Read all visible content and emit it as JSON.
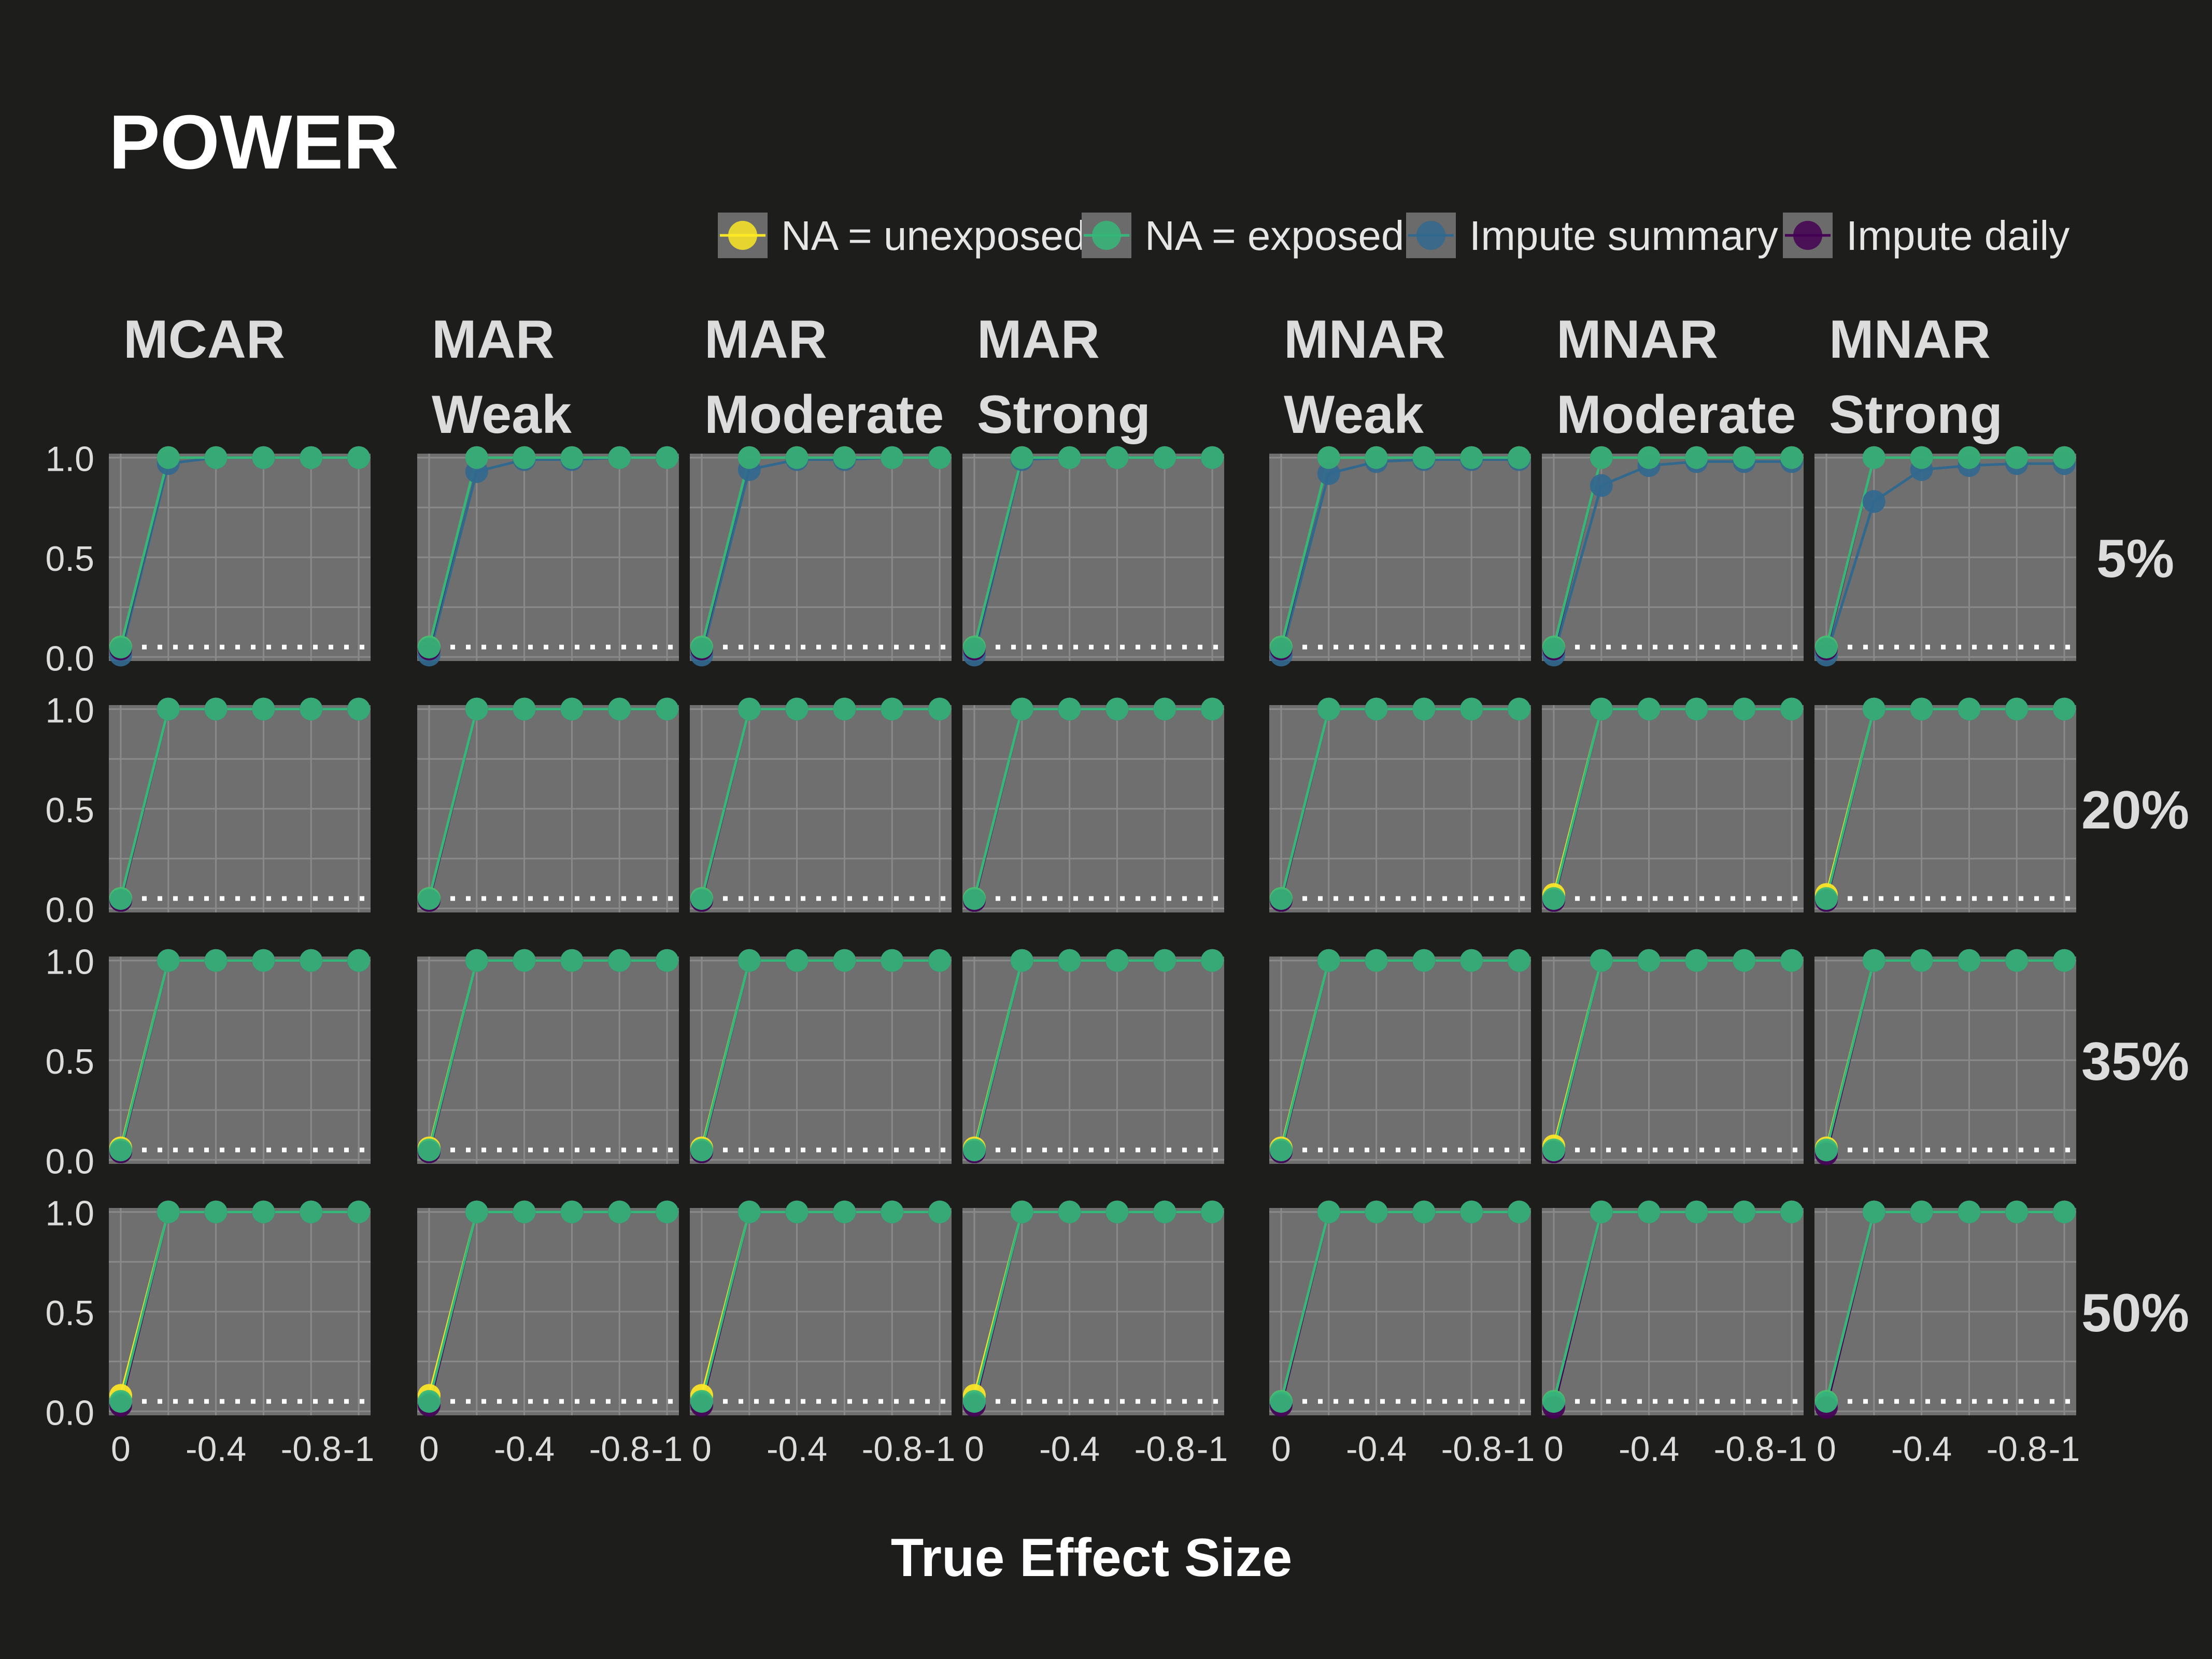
{
  "chart_data": {
    "type": "line",
    "title": "POWER",
    "xlabel": "True Effect Size",
    "ylabel": "",
    "x": [
      0,
      -0.2,
      -0.4,
      -0.6,
      -0.8,
      -1
    ],
    "x_tick_labels": [
      "0",
      "-0.4",
      "-0.8",
      "-1"
    ],
    "x_tick_values": [
      0,
      -0.4,
      -0.8,
      -1
    ],
    "xlim": [
      0.05,
      -1.05
    ],
    "y_tick_labels": [
      "0.0",
      "0.5",
      "1.0"
    ],
    "y_tick_values": [
      0,
      0.5,
      1
    ],
    "ylim": [
      -0.02,
      1.02
    ],
    "reference_line": {
      "y": 0.05,
      "style": "dotted",
      "color": "#ffffff"
    },
    "legend_position": "top-right",
    "legend": [
      "NA = unexposed",
      "NA = exposed",
      "Impute summary",
      "Impute daily"
    ],
    "series_colors": {
      "NA = unexposed": "#fde725",
      "NA = exposed": "#35b779",
      "Impute summary": "#31688e",
      "Impute daily": "#440154"
    },
    "columns": [
      {
        "line1": "MCAR",
        "line2": ""
      },
      {
        "line1": "MAR",
        "line2": "Weak"
      },
      {
        "line1": "MAR",
        "line2": "Moderate"
      },
      {
        "line1": "MAR",
        "line2": "Strong"
      },
      {
        "line1": "MNAR",
        "line2": "Weak"
      },
      {
        "line1": "MNAR",
        "line2": "Moderate"
      },
      {
        "line1": "MNAR",
        "line2": "Strong"
      }
    ],
    "rows": [
      "5%",
      "20%",
      "35%",
      "50%"
    ],
    "panels": [
      [
        {
          "NA = unexposed": [
            0.05,
            1,
            1,
            1,
            1,
            1
          ],
          "NA = exposed": [
            0.05,
            1,
            1,
            1,
            1,
            1
          ],
          "Impute summary": [
            0.01,
            0.97,
            1,
            1,
            1,
            1
          ],
          "Impute daily": [
            0.04,
            1,
            1,
            1,
            1,
            1
          ]
        },
        {
          "NA = unexposed": [
            0.05,
            1,
            1,
            1,
            1,
            1
          ],
          "NA = exposed": [
            0.05,
            1,
            1,
            1,
            1,
            1
          ],
          "Impute summary": [
            0.01,
            0.93,
            0.99,
            0.99,
            1,
            1
          ],
          "Impute daily": [
            0.04,
            1,
            1,
            1,
            1,
            1
          ]
        },
        {
          "NA = unexposed": [
            0.05,
            1,
            1,
            1,
            1,
            1
          ],
          "NA = exposed": [
            0.05,
            1,
            1,
            1,
            1,
            1
          ],
          "Impute summary": [
            0.01,
            0.94,
            0.99,
            0.99,
            1,
            1
          ],
          "Impute daily": [
            0.04,
            1,
            1,
            1,
            1,
            1
          ]
        },
        {
          "NA = unexposed": [
            0.05,
            1,
            1,
            1,
            1,
            1
          ],
          "NA = exposed": [
            0.05,
            1,
            1,
            1,
            1,
            1
          ],
          "Impute summary": [
            0.01,
            0.99,
            1,
            1,
            1,
            1
          ],
          "Impute daily": [
            0.04,
            1,
            1,
            1,
            1,
            1
          ]
        },
        {
          "NA = unexposed": [
            0.05,
            1,
            1,
            1,
            1,
            1
          ],
          "NA = exposed": [
            0.05,
            1,
            1,
            1,
            1,
            1
          ],
          "Impute summary": [
            0.01,
            0.92,
            0.98,
            0.99,
            0.99,
            0.99
          ],
          "Impute daily": [
            0.04,
            1,
            1,
            1,
            1,
            1
          ]
        },
        {
          "NA = unexposed": [
            0.05,
            1,
            1,
            1,
            1,
            1
          ],
          "NA = exposed": [
            0.05,
            1,
            1,
            1,
            1,
            1
          ],
          "Impute summary": [
            0.01,
            0.86,
            0.96,
            0.98,
            0.98,
            0.98
          ],
          "Impute daily": [
            0.04,
            1,
            1,
            1,
            1,
            1
          ]
        },
        {
          "NA = unexposed": [
            0.05,
            1,
            1,
            1,
            1,
            1
          ],
          "NA = exposed": [
            0.05,
            1,
            1,
            1,
            1,
            1
          ],
          "Impute summary": [
            0.01,
            0.78,
            0.94,
            0.96,
            0.97,
            0.97
          ],
          "Impute daily": [
            0.04,
            1,
            1,
            1,
            1,
            1
          ]
        }
      ],
      [
        {
          "NA = unexposed": [
            0.05,
            1,
            1,
            1,
            1,
            1
          ],
          "NA = exposed": [
            0.05,
            1,
            1,
            1,
            1,
            1
          ],
          "Impute summary": [
            0.04,
            1,
            1,
            1,
            1,
            1
          ],
          "Impute daily": [
            0.04,
            1,
            1,
            1,
            1,
            1
          ]
        },
        {
          "NA = unexposed": [
            0.05,
            1,
            1,
            1,
            1,
            1
          ],
          "NA = exposed": [
            0.05,
            1,
            1,
            1,
            1,
            1
          ],
          "Impute summary": [
            0.04,
            1,
            1,
            1,
            1,
            1
          ],
          "Impute daily": [
            0.04,
            1,
            1,
            1,
            1,
            1
          ]
        },
        {
          "NA = unexposed": [
            0.05,
            1,
            1,
            1,
            1,
            1
          ],
          "NA = exposed": [
            0.05,
            1,
            1,
            1,
            1,
            1
          ],
          "Impute summary": [
            0.04,
            1,
            1,
            1,
            1,
            1
          ],
          "Impute daily": [
            0.04,
            1,
            1,
            1,
            1,
            1
          ]
        },
        {
          "NA = unexposed": [
            0.05,
            1,
            1,
            1,
            1,
            1
          ],
          "NA = exposed": [
            0.05,
            1,
            1,
            1,
            1,
            1
          ],
          "Impute summary": [
            0.04,
            1,
            1,
            1,
            1,
            1
          ],
          "Impute daily": [
            0.04,
            1,
            1,
            1,
            1,
            1
          ]
        },
        {
          "NA = unexposed": [
            0.05,
            1,
            1,
            1,
            1,
            1
          ],
          "NA = exposed": [
            0.05,
            1,
            1,
            1,
            1,
            1
          ],
          "Impute summary": [
            0.04,
            1,
            1,
            1,
            1,
            1
          ],
          "Impute daily": [
            0.04,
            1,
            1,
            1,
            1,
            1
          ]
        },
        {
          "NA = unexposed": [
            0.07,
            1,
            1,
            1,
            1,
            1
          ],
          "NA = exposed": [
            0.05,
            1,
            1,
            1,
            1,
            1
          ],
          "Impute summary": [
            0.04,
            1,
            1,
            1,
            1,
            1
          ],
          "Impute daily": [
            0.04,
            1,
            1,
            1,
            1,
            1
          ]
        },
        {
          "NA = unexposed": [
            0.07,
            1,
            1,
            1,
            1,
            1
          ],
          "NA = exposed": [
            0.05,
            1,
            1,
            1,
            1,
            1
          ],
          "Impute summary": [
            0.04,
            1,
            1,
            1,
            1,
            1
          ],
          "Impute daily": [
            0.04,
            1,
            1,
            1,
            1,
            1
          ]
        }
      ],
      [
        {
          "NA = unexposed": [
            0.06,
            1,
            1,
            1,
            1,
            1
          ],
          "NA = exposed": [
            0.05,
            1,
            1,
            1,
            1,
            1
          ],
          "Impute summary": [
            0.04,
            1,
            1,
            1,
            1,
            1
          ],
          "Impute daily": [
            0.04,
            1,
            1,
            1,
            1,
            1
          ]
        },
        {
          "NA = unexposed": [
            0.06,
            1,
            1,
            1,
            1,
            1
          ],
          "NA = exposed": [
            0.05,
            1,
            1,
            1,
            1,
            1
          ],
          "Impute summary": [
            0.04,
            1,
            1,
            1,
            1,
            1
          ],
          "Impute daily": [
            0.04,
            1,
            1,
            1,
            1,
            1
          ]
        },
        {
          "NA = unexposed": [
            0.06,
            1,
            1,
            1,
            1,
            1
          ],
          "NA = exposed": [
            0.05,
            1,
            1,
            1,
            1,
            1
          ],
          "Impute summary": [
            0.04,
            1,
            1,
            1,
            1,
            1
          ],
          "Impute daily": [
            0.04,
            1,
            1,
            1,
            1,
            1
          ]
        },
        {
          "NA = unexposed": [
            0.06,
            1,
            1,
            1,
            1,
            1
          ],
          "NA = exposed": [
            0.05,
            1,
            1,
            1,
            1,
            1
          ],
          "Impute summary": [
            0.04,
            1,
            1,
            1,
            1,
            1
          ],
          "Impute daily": [
            0.04,
            1,
            1,
            1,
            1,
            1
          ]
        },
        {
          "NA = unexposed": [
            0.06,
            1,
            1,
            1,
            1,
            1
          ],
          "NA = exposed": [
            0.05,
            1,
            1,
            1,
            1,
            1
          ],
          "Impute summary": [
            0.04,
            1,
            1,
            1,
            1,
            1
          ],
          "Impute daily": [
            0.04,
            1,
            1,
            1,
            1,
            1
          ]
        },
        {
          "NA = unexposed": [
            0.07,
            1,
            1,
            1,
            1,
            1
          ],
          "NA = exposed": [
            0.05,
            1,
            1,
            1,
            1,
            1
          ],
          "Impute summary": [
            0.04,
            1,
            1,
            1,
            1,
            1
          ],
          "Impute daily": [
            0.04,
            1,
            1,
            1,
            1,
            1
          ]
        },
        {
          "NA = unexposed": [
            0.06,
            1,
            1,
            1,
            1,
            1
          ],
          "NA = exposed": [
            0.05,
            1,
            1,
            1,
            1,
            1
          ],
          "Impute summary": [
            0.04,
            1,
            1,
            1,
            1,
            1
          ],
          "Impute daily": [
            0.03,
            1,
            1,
            1,
            1,
            1
          ]
        }
      ],
      [
        {
          "NA = unexposed": [
            0.08,
            1,
            1,
            1,
            1,
            1
          ],
          "NA = exposed": [
            0.05,
            1,
            1,
            1,
            1,
            1
          ],
          "Impute summary": [
            0.04,
            1,
            1,
            1,
            1,
            1
          ],
          "Impute daily": [
            0.03,
            1,
            1,
            1,
            1,
            1
          ]
        },
        {
          "NA = unexposed": [
            0.08,
            1,
            1,
            1,
            1,
            1
          ],
          "NA = exposed": [
            0.05,
            1,
            1,
            1,
            1,
            1
          ],
          "Impute summary": [
            0.04,
            1,
            1,
            1,
            1,
            1
          ],
          "Impute daily": [
            0.03,
            1,
            1,
            1,
            1,
            1
          ]
        },
        {
          "NA = unexposed": [
            0.08,
            1,
            1,
            1,
            1,
            1
          ],
          "NA = exposed": [
            0.05,
            1,
            1,
            1,
            1,
            1
          ],
          "Impute summary": [
            0.04,
            1,
            1,
            1,
            1,
            1
          ],
          "Impute daily": [
            0.03,
            1,
            1,
            1,
            1,
            1
          ]
        },
        {
          "NA = unexposed": [
            0.08,
            1,
            1,
            1,
            1,
            1
          ],
          "NA = exposed": [
            0.05,
            1,
            1,
            1,
            1,
            1
          ],
          "Impute summary": [
            0.04,
            1,
            1,
            1,
            1,
            1
          ],
          "Impute daily": [
            0.03,
            1,
            1,
            1,
            1,
            1
          ]
        },
        {
          "NA = unexposed": [
            0.05,
            1,
            1,
            1,
            1,
            1
          ],
          "NA = exposed": [
            0.05,
            1,
            1,
            1,
            1,
            1
          ],
          "Impute summary": [
            0.04,
            1,
            1,
            1,
            1,
            1
          ],
          "Impute daily": [
            0.03,
            1,
            1,
            1,
            1,
            1
          ]
        },
        {
          "NA = unexposed": [
            0.05,
            1,
            1,
            1,
            1,
            1
          ],
          "NA = exposed": [
            0.05,
            1,
            1,
            1,
            1,
            1
          ],
          "Impute summary": [
            0.04,
            1,
            1,
            1,
            1,
            1
          ],
          "Impute daily": [
            0.02,
            1,
            1,
            1,
            1,
            1
          ]
        },
        {
          "NA = unexposed": [
            0.05,
            1,
            1,
            1,
            1,
            1
          ],
          "NA = exposed": [
            0.05,
            1,
            1,
            1,
            1,
            1
          ],
          "Impute summary": [
            0.04,
            1,
            1,
            1,
            1,
            1
          ],
          "Impute daily": [
            0.02,
            1,
            1,
            1,
            1,
            1
          ]
        }
      ]
    ]
  }
}
